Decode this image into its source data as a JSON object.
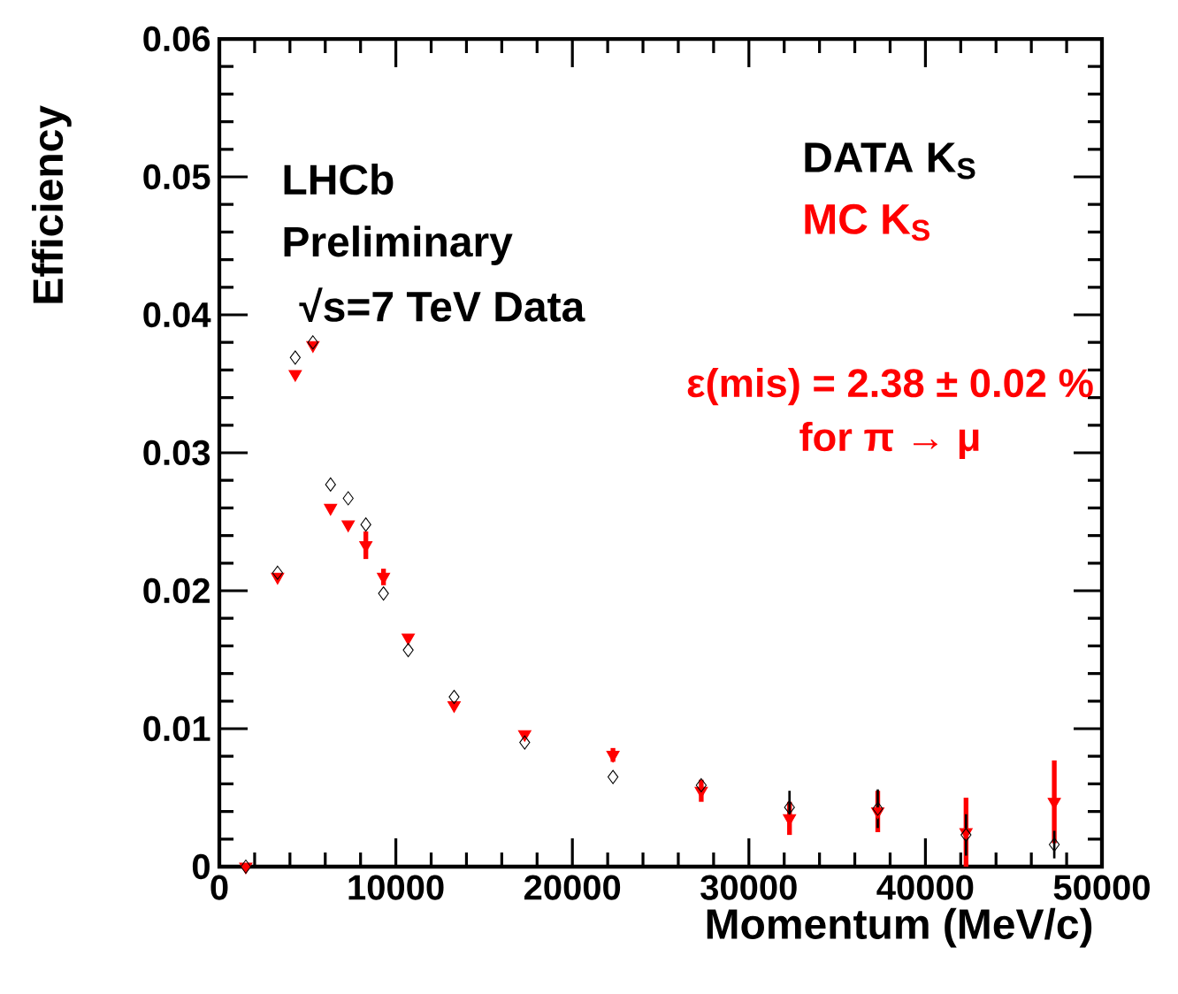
{
  "chart_data": {
    "type": "scatter",
    "xlabel": "Momentum (MeV/c)",
    "ylabel": "Efficiency",
    "xlim": [
      0,
      50000
    ],
    "xticks": [
      0,
      10000,
      20000,
      30000,
      40000,
      50000
    ],
    "ylim": [
      0,
      0.06
    ],
    "yticks": [
      0,
      0.01,
      0.02,
      0.03,
      0.04,
      0.05,
      0.06
    ],
    "x": [
      1500,
      3300,
      4300,
      5300,
      6300,
      7300,
      8300,
      9300,
      10700,
      13300,
      17300,
      22300,
      27300,
      32300,
      37300,
      42300,
      47300
    ],
    "legend": "top right",
    "grid": false,
    "series": [
      {
        "name": "DATA K$_{S}$",
        "color": "#000000",
        "marker": "diamond",
        "values": [
          0.0,
          0.0213,
          0.0369,
          0.038,
          0.0277,
          0.0267,
          0.0248,
          0.0198,
          0.0157,
          0.0123,
          0.009,
          0.0065,
          0.0059,
          0.0043,
          0.0042,
          0.0023,
          0.0016
        ],
        "errors": [
          null,
          null,
          null,
          null,
          null,
          null,
          null,
          null,
          null,
          null,
          null,
          null,
          null,
          0.0012,
          0.0014,
          0.0015,
          0.001
        ]
      },
      {
        "name": "MC K$_{S}$",
        "color": "#ff0000",
        "marker": "triangle",
        "values": [
          0.0,
          0.021,
          0.0357,
          0.0378,
          0.026,
          0.0248,
          0.0233,
          0.021,
          0.0166,
          0.0117,
          0.0096,
          0.0081,
          0.0055,
          0.0035,
          0.004,
          0.0025,
          0.0047
        ],
        "errors": [
          null,
          null,
          null,
          null,
          null,
          null,
          0.001,
          0.0006,
          null,
          null,
          null,
          0.0005,
          0.0008,
          0.0012,
          0.0015,
          0.0025,
          0.003
        ]
      }
    ],
    "annotations": [
      "LHCb",
      "Preliminary",
      "√s=7 TeV Data",
      "ε(mis) = 2.38 ± 0.02 %",
      "for π → μ"
    ]
  }
}
